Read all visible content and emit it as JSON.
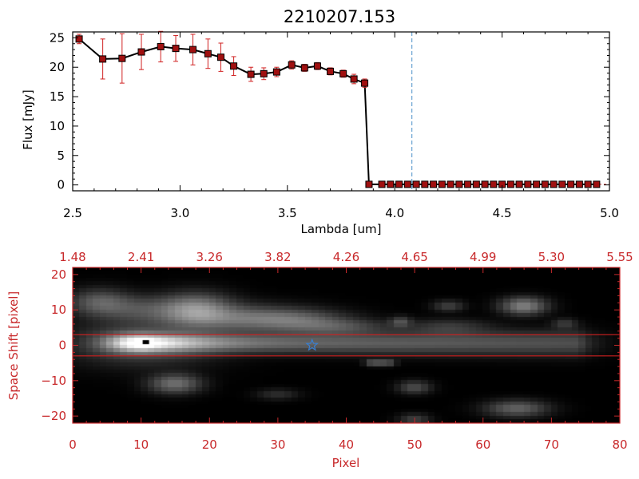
{
  "title": "2210207.153",
  "colors": {
    "axis_black": "#000000",
    "axis_red": "#c8292b",
    "marker_fill": "#a01010",
    "errorbar": "#d02020",
    "vline": "#4a90c8",
    "aperture_line": "#d02020",
    "star_marker": "#3a7fd0",
    "image_bg": "#000000"
  },
  "chart_data": [
    {
      "type": "line",
      "title": "2210207.153",
      "xlabel": "Lambda [um]",
      "ylabel": "Flux [mJy]",
      "xlim": [
        2.5,
        5.0
      ],
      "ylim": [
        -1,
        26
      ],
      "x_ticks": [
        2.5,
        3.0,
        3.5,
        4.0,
        4.5,
        5.0
      ],
      "x_tick_labels": [
        "2.5",
        "3.0",
        "3.5",
        "4.0",
        "4.5",
        "5.0"
      ],
      "y_ticks": [
        0,
        5,
        10,
        15,
        20,
        25
      ],
      "y_tick_labels": [
        "0",
        "5",
        "10",
        "15",
        "20",
        "25"
      ],
      "vertical_line_x": 4.08,
      "series": [
        {
          "x": [
            2.53,
            2.64,
            2.73,
            2.82,
            2.91,
            2.98,
            3.06,
            3.13,
            3.19,
            3.25,
            3.33,
            3.39,
            3.45,
            3.52,
            3.58,
            3.64,
            3.7,
            3.76,
            3.81,
            3.86,
            3.88,
            3.94,
            3.98,
            4.02,
            4.06,
            4.1,
            4.14,
            4.18,
            4.22,
            4.26,
            4.3,
            4.34,
            4.38,
            4.42,
            4.46,
            4.5,
            4.54,
            4.58,
            4.62,
            4.66,
            4.7,
            4.74,
            4.78,
            4.82,
            4.86,
            4.9,
            4.94
          ],
          "y": [
            24.8,
            21.4,
            21.5,
            22.6,
            23.5,
            23.2,
            23.0,
            22.3,
            21.7,
            20.2,
            18.8,
            18.9,
            19.2,
            20.4,
            19.9,
            20.2,
            19.3,
            18.9,
            18.0,
            17.3,
            0.1,
            0.1,
            0.1,
            0.1,
            0.1,
            0.1,
            0.1,
            0.1,
            0.1,
            0.1,
            0.1,
            0.1,
            0.1,
            0.1,
            0.1,
            0.1,
            0.1,
            0.1,
            0.1,
            0.1,
            0.1,
            0.1,
            0.1,
            0.1,
            0.1,
            0.1,
            0.1
          ],
          "yerr": [
            0.8,
            3.4,
            4.2,
            3.0,
            2.6,
            2.2,
            2.6,
            2.5,
            2.4,
            1.6,
            1.2,
            1.0,
            0.8,
            0.7,
            0.6,
            0.6,
            0.6,
            0.6,
            0.8,
            0.7,
            0,
            0,
            0,
            0,
            0,
            0,
            0,
            0,
            0,
            0,
            0,
            0,
            0,
            0,
            0,
            0,
            0,
            0,
            0,
            0,
            0,
            0,
            0,
            0,
            0,
            0,
            0
          ]
        }
      ]
    },
    {
      "type": "heatmap",
      "xlabel": "Pixel",
      "ylabel": "Space Shift [pixel]",
      "xlim": [
        0,
        80
      ],
      "ylim": [
        -22,
        22
      ],
      "x_ticks": [
        0,
        10,
        20,
        30,
        40,
        50,
        60,
        70,
        80
      ],
      "x_tick_labels": [
        "0",
        "10",
        "20",
        "30",
        "40",
        "50",
        "60",
        "70",
        "80"
      ],
      "y_ticks": [
        -20,
        -10,
        0,
        10,
        20
      ],
      "y_tick_labels": [
        "−20",
        "−10",
        "0",
        "10",
        "20"
      ],
      "top_axis_ticks": [
        0,
        10,
        20,
        30,
        40,
        50,
        60,
        70,
        80
      ],
      "top_tick_labels": [
        "1.48",
        "2.41",
        "3.26",
        "3.82",
        "4.26",
        "4.65",
        "4.99",
        "5.30",
        "5.55"
      ],
      "aperture_y": [
        3,
        -3
      ],
      "star_marker": {
        "x": 35,
        "y": 0
      },
      "peak_marker": {
        "x": 10,
        "y": 1
      },
      "trace": {
        "peak_x": 10.5,
        "peak_y": 0.5,
        "tail_end_x": 74
      },
      "blobs": [
        {
          "x": 4,
          "y": 12,
          "amp": 0.28,
          "sx": 3,
          "sy": 2.5
        },
        {
          "x": 10,
          "y": 10,
          "amp": 0.2,
          "sx": 4,
          "sy": 2.5
        },
        {
          "x": 18,
          "y": 10,
          "amp": 0.45,
          "sx": 3.5,
          "sy": 3
        },
        {
          "x": 25,
          "y": 7.5,
          "amp": 0.3,
          "sx": 6,
          "sy": 2.5
        },
        {
          "x": 33,
          "y": 7,
          "amp": 0.25,
          "sx": 5,
          "sy": 2
        },
        {
          "x": 39,
          "y": 5,
          "amp": 0.2,
          "sx": 5,
          "sy": 1.5
        },
        {
          "x": 48,
          "y": 6.5,
          "amp": 0.22,
          "sx": 1,
          "sy": 1
        },
        {
          "x": 66,
          "y": 11,
          "amp": 0.42,
          "sx": 2.2,
          "sy": 1.6
        },
        {
          "x": 55,
          "y": 11,
          "amp": 0.18,
          "sx": 1.5,
          "sy": 1
        },
        {
          "x": 15,
          "y": -11,
          "amp": 0.35,
          "sx": 2.5,
          "sy": 1.8
        },
        {
          "x": 50,
          "y": -12,
          "amp": 0.22,
          "sx": 1.6,
          "sy": 1.2
        },
        {
          "x": 65,
          "y": -18,
          "amp": 0.3,
          "sx": 3,
          "sy": 1.5
        },
        {
          "x": 50,
          "y": -21,
          "amp": 0.18,
          "sx": 1.5,
          "sy": 1
        },
        {
          "x": 44,
          "y": -5,
          "amp": 0.3,
          "sx": 0.8,
          "sy": 0.6
        },
        {
          "x": 46,
          "y": -5,
          "amp": 0.28,
          "sx": 0.8,
          "sy": 0.6
        },
        {
          "x": 55,
          "y": 5,
          "amp": 0.15,
          "sx": 4,
          "sy": 1.5
        },
        {
          "x": 72,
          "y": 6,
          "amp": 0.15,
          "sx": 1.2,
          "sy": 1
        },
        {
          "x": 30,
          "y": -14,
          "amp": 0.12,
          "sx": 2,
          "sy": 1
        }
      ]
    }
  ]
}
